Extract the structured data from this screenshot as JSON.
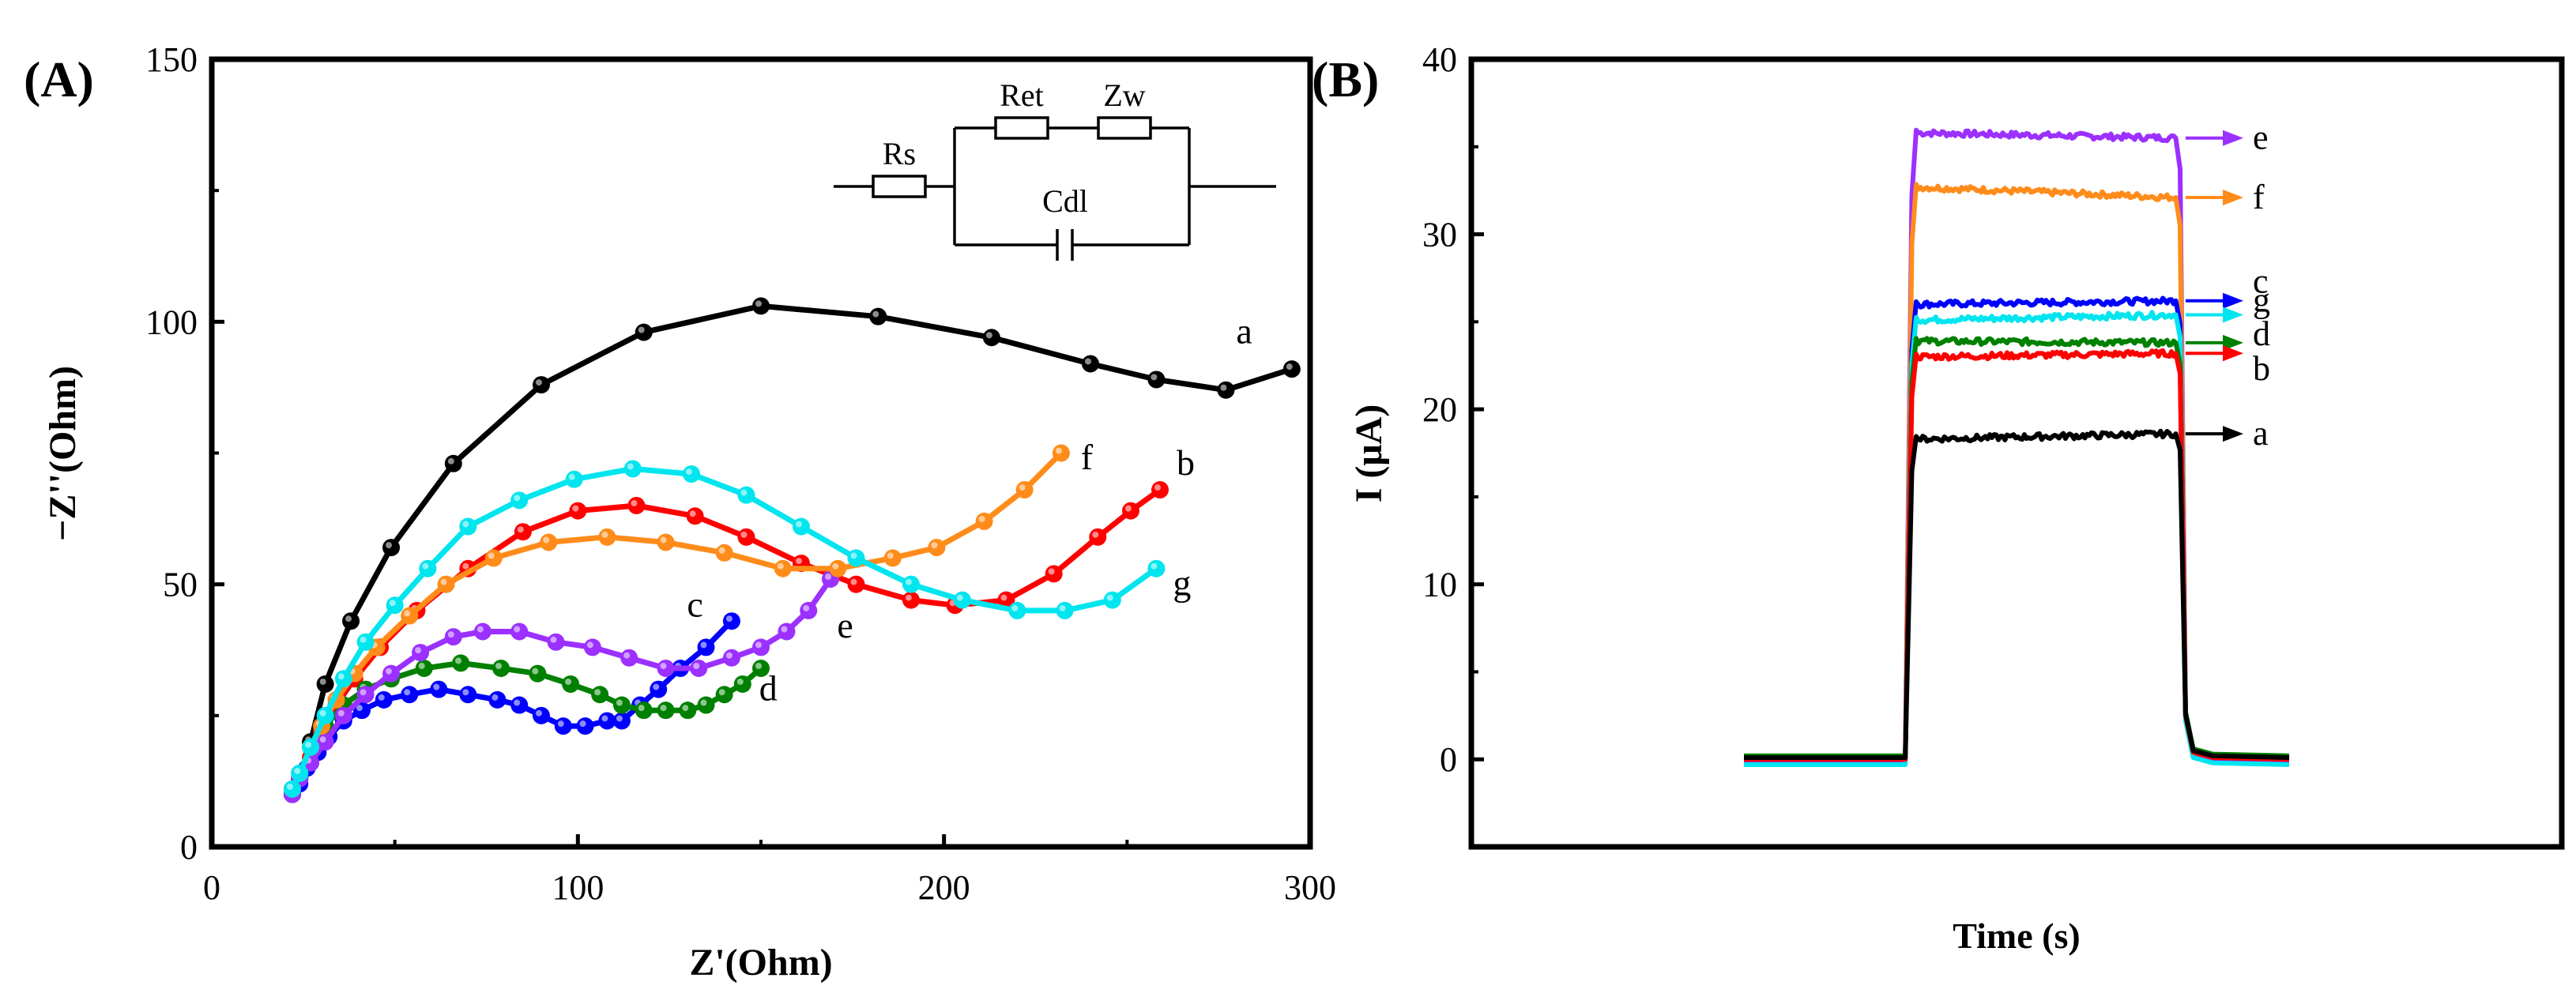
{
  "colors": {
    "a": "#000000",
    "b": "#ff0000",
    "c": "#0000ff",
    "d": "#008000",
    "e": "#9b30ff",
    "f": "#ff8c1a",
    "g": "#00e5ee"
  },
  "chart_data": [
    {
      "type": "scatter",
      "panel_label": "(A)",
      "xlabel": "Z'(Ohm)",
      "ylabel": "−Z''(Ohm)",
      "xlim": [
        0,
        300
      ],
      "ylim": [
        0,
        150
      ],
      "xticks": [
        "0",
        "100",
        "200",
        "300"
      ],
      "yticks": [
        "0",
        "50",
        "100",
        "150"
      ],
      "grid": false,
      "circuit": {
        "rs": "Rs",
        "ret": "Ret",
        "zw": "Zw",
        "cdl": "Cdl"
      },
      "series": [
        {
          "name": "a",
          "points": [
            [
              22,
              10
            ],
            [
              24,
              13
            ],
            [
              27,
              20
            ],
            [
              31,
              31
            ],
            [
              38,
              43
            ],
            [
              49,
              57
            ],
            [
              66,
              73
            ],
            [
              90,
              88
            ],
            [
              118,
              98
            ],
            [
              150,
              103
            ],
            [
              182,
              101
            ],
            [
              213,
              97
            ],
            [
              240,
              92
            ],
            [
              258,
              89
            ],
            [
              277,
              87
            ],
            [
              295,
              91
            ]
          ]
        },
        {
          "name": "b",
          "points": [
            [
              22,
              10
            ],
            [
              24,
              13
            ],
            [
              27,
              17
            ],
            [
              30,
              22
            ],
            [
              34,
              27
            ],
            [
              39,
              32
            ],
            [
              46,
              38
            ],
            [
              56,
              45
            ],
            [
              70,
              53
            ],
            [
              85,
              60
            ],
            [
              100,
              64
            ],
            [
              116,
              65
            ],
            [
              132,
              63
            ],
            [
              146,
              59
            ],
            [
              161,
              54
            ],
            [
              176,
              50
            ],
            [
              191,
              47
            ],
            [
              203,
              46
            ],
            [
              217,
              47
            ],
            [
              230,
              52
            ],
            [
              242,
              59
            ],
            [
              251,
              64
            ],
            [
              259,
              68
            ]
          ]
        },
        {
          "name": "c",
          "points": [
            [
              22,
              10
            ],
            [
              24,
              12
            ],
            [
              26,
              15
            ],
            [
              29,
              18
            ],
            [
              32,
              21
            ],
            [
              36,
              24
            ],
            [
              41,
              26
            ],
            [
              47,
              28
            ],
            [
              54,
              29
            ],
            [
              62,
              30
            ],
            [
              70,
              29
            ],
            [
              78,
              28
            ],
            [
              84,
              27
            ],
            [
              90,
              25
            ],
            [
              96,
              23
            ],
            [
              102,
              23
            ],
            [
              108,
              24
            ],
            [
              112,
              24
            ],
            [
              117,
              27
            ],
            [
              122,
              30
            ],
            [
              128,
              34
            ],
            [
              135,
              38
            ],
            [
              142,
              43
            ]
          ]
        },
        {
          "name": "d",
          "points": [
            [
              22,
              11
            ],
            [
              24,
              14
            ],
            [
              27,
              19
            ],
            [
              31,
              23
            ],
            [
              36,
              27
            ],
            [
              42,
              30
            ],
            [
              49,
              32
            ],
            [
              58,
              34
            ],
            [
              68,
              35
            ],
            [
              79,
              34
            ],
            [
              89,
              33
            ],
            [
              98,
              31
            ],
            [
              106,
              29
            ],
            [
              112,
              27
            ],
            [
              118,
              26
            ],
            [
              124,
              26
            ],
            [
              130,
              26
            ],
            [
              135,
              27
            ],
            [
              140,
              29
            ],
            [
              145,
              31
            ],
            [
              150,
              34
            ]
          ]
        },
        {
          "name": "e",
          "points": [
            [
              22,
              10
            ],
            [
              24,
              13
            ],
            [
              27,
              16
            ],
            [
              31,
              20
            ],
            [
              36,
              25
            ],
            [
              42,
              29
            ],
            [
              49,
              33
            ],
            [
              57,
              37
            ],
            [
              66,
              40
            ],
            [
              74,
              41
            ],
            [
              84,
              41
            ],
            [
              94,
              39
            ],
            [
              104,
              38
            ],
            [
              114,
              36
            ],
            [
              124,
              34
            ],
            [
              133,
              34
            ],
            [
              142,
              36
            ],
            [
              150,
              38
            ],
            [
              157,
              41
            ],
            [
              163,
              45
            ],
            [
              169,
              51
            ]
          ]
        },
        {
          "name": "f",
          "points": [
            [
              22,
              11
            ],
            [
              24,
              14
            ],
            [
              27,
              19
            ],
            [
              30,
              23
            ],
            [
              34,
              28
            ],
            [
              39,
              33
            ],
            [
              45,
              38
            ],
            [
              54,
              44
            ],
            [
              64,
              50
            ],
            [
              77,
              55
            ],
            [
              92,
              58
            ],
            [
              108,
              59
            ],
            [
              124,
              58
            ],
            [
              140,
              56
            ],
            [
              156,
              53
            ],
            [
              171,
              53
            ],
            [
              186,
              55
            ],
            [
              198,
              57
            ],
            [
              211,
              62
            ],
            [
              222,
              68
            ],
            [
              232,
              75
            ]
          ]
        },
        {
          "name": "g",
          "points": [
            [
              22,
              11
            ],
            [
              24,
              14
            ],
            [
              27,
              19
            ],
            [
              31,
              25
            ],
            [
              36,
              32
            ],
            [
              42,
              39
            ],
            [
              50,
              46
            ],
            [
              59,
              53
            ],
            [
              70,
              61
            ],
            [
              84,
              66
            ],
            [
              99,
              70
            ],
            [
              115,
              72
            ],
            [
              131,
              71
            ],
            [
              146,
              67
            ],
            [
              161,
              61
            ],
            [
              176,
              55
            ],
            [
              191,
              50
            ],
            [
              205,
              47
            ],
            [
              220,
              45
            ],
            [
              233,
              45
            ],
            [
              246,
              47
            ],
            [
              258,
              53
            ]
          ]
        }
      ],
      "curve_labels": [
        {
          "name": "a",
          "text": "a",
          "x": 282,
          "y": 98
        },
        {
          "name": "b",
          "text": "b",
          "x": 266,
          "y": 73
        },
        {
          "name": "c",
          "text": "c",
          "x": 132,
          "y": 46
        },
        {
          "name": "d",
          "text": "d",
          "x": 152,
          "y": 30
        },
        {
          "name": "e",
          "text": "e",
          "x": 173,
          "y": 42
        },
        {
          "name": "f",
          "text": "f",
          "x": 239,
          "y": 74
        },
        {
          "name": "g",
          "text": "g",
          "x": 265,
          "y": 50
        }
      ]
    },
    {
      "type": "line",
      "panel_label": "(B)",
      "xlabel": "Time (s)",
      "ylabel": "I (μA)",
      "x_range_units": [
        0,
        100
      ],
      "ylim": [
        -5,
        40
      ],
      "yticks": [
        "0",
        "10",
        "20",
        "30",
        "40"
      ],
      "light_on": 40,
      "light_off": 65,
      "trace_range": [
        25,
        75
      ],
      "grid": false,
      "series": [
        {
          "name": "e",
          "on_level": 35.8,
          "off_level": 35.5,
          "baseline": -0.1
        },
        {
          "name": "f",
          "on_level": 32.7,
          "off_level": 32.1,
          "baseline": 0.1
        },
        {
          "name": "c",
          "on_level": 26.0,
          "off_level": 26.2,
          "baseline": 0.0
        },
        {
          "name": "g",
          "on_level": 25.1,
          "off_level": 25.4,
          "baseline": -0.3
        },
        {
          "name": "d",
          "on_level": 23.9,
          "off_level": 23.8,
          "baseline": 0.2
        },
        {
          "name": "b",
          "on_level": 23.0,
          "off_level": 23.2,
          "baseline": 0.0
        },
        {
          "name": "a",
          "on_level": 18.3,
          "off_level": 18.6,
          "baseline": 0.1
        }
      ],
      "curve_labels": [
        {
          "name": "e",
          "text": "e",
          "arrow_y": 35.5,
          "label_y": 35.5
        },
        {
          "name": "f",
          "text": "f",
          "arrow_y": 32.1,
          "label_y": 32.1
        },
        {
          "name": "c",
          "text": "c",
          "arrow_y": 26.2,
          "label_y": 27.3
        },
        {
          "name": "g",
          "text": "g",
          "arrow_y": 25.4,
          "label_y": 26.2
        },
        {
          "name": "d",
          "text": "d",
          "arrow_y": 23.8,
          "label_y": 24.3
        },
        {
          "name": "b",
          "text": "b",
          "arrow_y": 23.2,
          "label_y": 22.3
        },
        {
          "name": "a",
          "text": "a",
          "arrow_y": 18.6,
          "label_y": 18.6
        }
      ]
    }
  ]
}
